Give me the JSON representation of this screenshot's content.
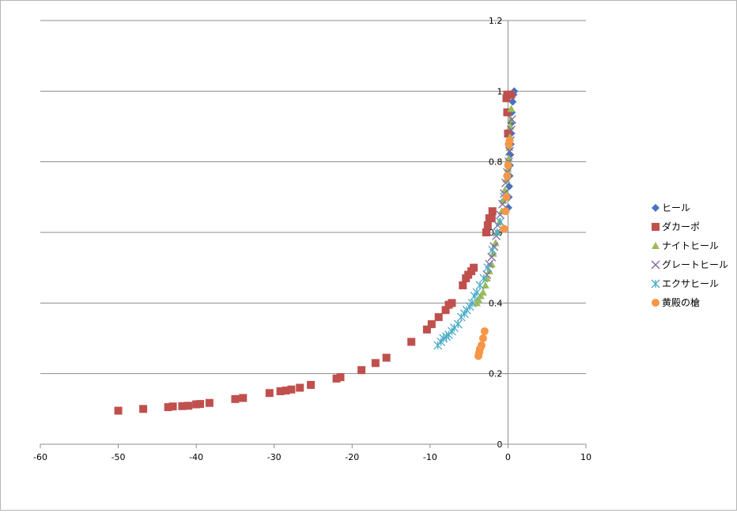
{
  "chart_data": {
    "type": "scatter",
    "title": "",
    "xlabel": "",
    "ylabel": "",
    "xlim": [
      -60,
      10
    ],
    "ylim": [
      0,
      1.2
    ],
    "x_ticks": [
      -60,
      -50,
      -40,
      -30,
      -20,
      -10,
      0,
      10
    ],
    "y_ticks": [
      0,
      0.2,
      0.4,
      0.6,
      0.8,
      1,
      1.2
    ],
    "x_tick_labels": [
      "-60",
      "-50",
      "-40",
      "-30",
      "-20",
      "-10",
      "0",
      "10"
    ],
    "y_tick_labels": [
      "0",
      "0.2",
      "0.4",
      "0.6",
      "0.8",
      "1",
      "1.2"
    ],
    "grid": {
      "horizontal": true,
      "vertical": false
    },
    "legend_position": "right",
    "series": [
      {
        "name": "ヒール",
        "marker": "diamond",
        "color": "#4472c4",
        "points": [
          [
            0.8,
            1.0
          ],
          [
            0.7,
            0.99
          ],
          [
            0.6,
            0.97
          ],
          [
            0.5,
            0.94
          ],
          [
            0.45,
            0.91
          ],
          [
            0.4,
            0.88
          ],
          [
            0.35,
            0.85
          ],
          [
            0.3,
            0.82
          ],
          [
            0.25,
            0.79
          ],
          [
            0.2,
            0.76
          ],
          [
            0.15,
            0.73
          ],
          [
            0.1,
            0.7
          ],
          [
            0.05,
            0.67
          ]
        ]
      },
      {
        "name": "ダカーポ",
        "marker": "square",
        "color": "#c0504d",
        "points": [
          [
            -50,
            0.095
          ],
          [
            -46.8,
            0.1
          ],
          [
            -43.6,
            0.105
          ],
          [
            -43,
            0.107
          ],
          [
            -41.8,
            0.108
          ],
          [
            -41,
            0.109
          ],
          [
            -40,
            0.113
          ],
          [
            -39.5,
            0.114
          ],
          [
            -38.3,
            0.117
          ],
          [
            -35,
            0.128
          ],
          [
            -34,
            0.131
          ],
          [
            -30.6,
            0.145
          ],
          [
            -29.2,
            0.15
          ],
          [
            -28.5,
            0.152
          ],
          [
            -27.8,
            0.155
          ],
          [
            -26.7,
            0.16
          ],
          [
            -25.3,
            0.168
          ],
          [
            -22,
            0.186
          ],
          [
            -21.5,
            0.19
          ],
          [
            -18.8,
            0.21
          ],
          [
            -17,
            0.23
          ],
          [
            -15.6,
            0.245
          ],
          [
            -12.4,
            0.29
          ],
          [
            -10.4,
            0.325
          ],
          [
            -9.8,
            0.34
          ],
          [
            -8.9,
            0.36
          ],
          [
            -8,
            0.38
          ],
          [
            -7.6,
            0.395
          ],
          [
            -7.2,
            0.4
          ],
          [
            -5.8,
            0.45
          ],
          [
            -5.4,
            0.47
          ],
          [
            -5.1,
            0.48
          ],
          [
            -4.7,
            0.49
          ],
          [
            -4.4,
            0.5
          ],
          [
            -2.8,
            0.6
          ],
          [
            -2.6,
            0.62
          ],
          [
            -2.4,
            0.64
          ],
          [
            -2.1,
            0.64
          ],
          [
            -2.0,
            0.66
          ],
          [
            0.0,
            0.88
          ],
          [
            -0.1,
            0.94
          ],
          [
            -0.2,
            0.98
          ],
          [
            -0.1,
            0.99
          ],
          [
            0.2,
            0.99
          ],
          [
            0.4,
            0.99
          ]
        ]
      },
      {
        "name": "ナイトヒール",
        "marker": "triangle",
        "color": "#9bbb59",
        "points": [
          [
            0.4,
            0.95
          ],
          [
            0.35,
            0.92
          ],
          [
            0.3,
            0.9
          ],
          [
            0.25,
            0.87
          ],
          [
            0.2,
            0.84
          ],
          [
            0.1,
            0.81
          ],
          [
            0.0,
            0.78
          ],
          [
            -0.2,
            0.75
          ],
          [
            -0.4,
            0.72
          ],
          [
            -0.6,
            0.69
          ],
          [
            -0.8,
            0.66
          ],
          [
            -1.1,
            0.63
          ],
          [
            -1.4,
            0.6
          ],
          [
            -1.6,
            0.57
          ],
          [
            -1.9,
            0.54
          ],
          [
            -2.1,
            0.51
          ],
          [
            -2.4,
            0.49
          ],
          [
            -2.7,
            0.47
          ],
          [
            -2.9,
            0.45
          ],
          [
            -3.2,
            0.43
          ],
          [
            -3.5,
            0.42
          ],
          [
            -3.8,
            0.41
          ],
          [
            -4.0,
            0.4
          ]
        ]
      },
      {
        "name": "グレートヒール",
        "marker": "x",
        "color": "#8064a2",
        "points": [
          [
            0.5,
            0.92
          ],
          [
            0.4,
            0.89
          ],
          [
            0.3,
            0.86
          ],
          [
            0.2,
            0.83
          ],
          [
            0.1,
            0.8
          ],
          [
            -0.1,
            0.77
          ],
          [
            -0.3,
            0.74
          ],
          [
            -0.5,
            0.71
          ],
          [
            -0.7,
            0.68
          ],
          [
            -1.0,
            0.65
          ],
          [
            -1.3,
            0.62
          ],
          [
            -1.5,
            0.59
          ],
          [
            -1.8,
            0.56
          ],
          [
            -2.1,
            0.53
          ],
          [
            -2.4,
            0.51
          ],
          [
            -2.7,
            0.48
          ]
        ]
      },
      {
        "name": "エクサヒール",
        "marker": "asterisk",
        "color": "#4bacc6",
        "points": [
          [
            -0.5,
            0.7
          ],
          [
            -1.0,
            0.63
          ],
          [
            -1.4,
            0.6
          ],
          [
            -2.0,
            0.55
          ],
          [
            -2.6,
            0.5
          ],
          [
            -3.1,
            0.47
          ],
          [
            -3.6,
            0.45
          ],
          [
            -4.0,
            0.43
          ],
          [
            -4.3,
            0.42
          ],
          [
            -4.6,
            0.4
          ],
          [
            -4.9,
            0.39
          ],
          [
            -5.3,
            0.38
          ],
          [
            -5.6,
            0.37
          ],
          [
            -6.0,
            0.36
          ],
          [
            -6.4,
            0.34
          ],
          [
            -6.9,
            0.33
          ],
          [
            -7.2,
            0.32
          ],
          [
            -7.6,
            0.31
          ],
          [
            -7.9,
            0.305
          ],
          [
            -8.3,
            0.3
          ],
          [
            -8.6,
            0.29
          ],
          [
            -9.0,
            0.28
          ]
        ]
      },
      {
        "name": "黄殿の槍",
        "marker": "circle",
        "color": "#f79646",
        "points": [
          [
            0.2,
            0.86
          ],
          [
            0.1,
            0.85
          ],
          [
            0.0,
            0.79
          ],
          [
            -0.1,
            0.76
          ],
          [
            -0.2,
            0.7
          ],
          [
            -0.3,
            0.66
          ],
          [
            -0.5,
            0.61
          ],
          [
            -3.0,
            0.32
          ],
          [
            -3.2,
            0.3
          ],
          [
            -3.4,
            0.28
          ],
          [
            -3.6,
            0.27
          ],
          [
            -3.7,
            0.26
          ],
          [
            -3.8,
            0.25
          ]
        ]
      }
    ]
  }
}
